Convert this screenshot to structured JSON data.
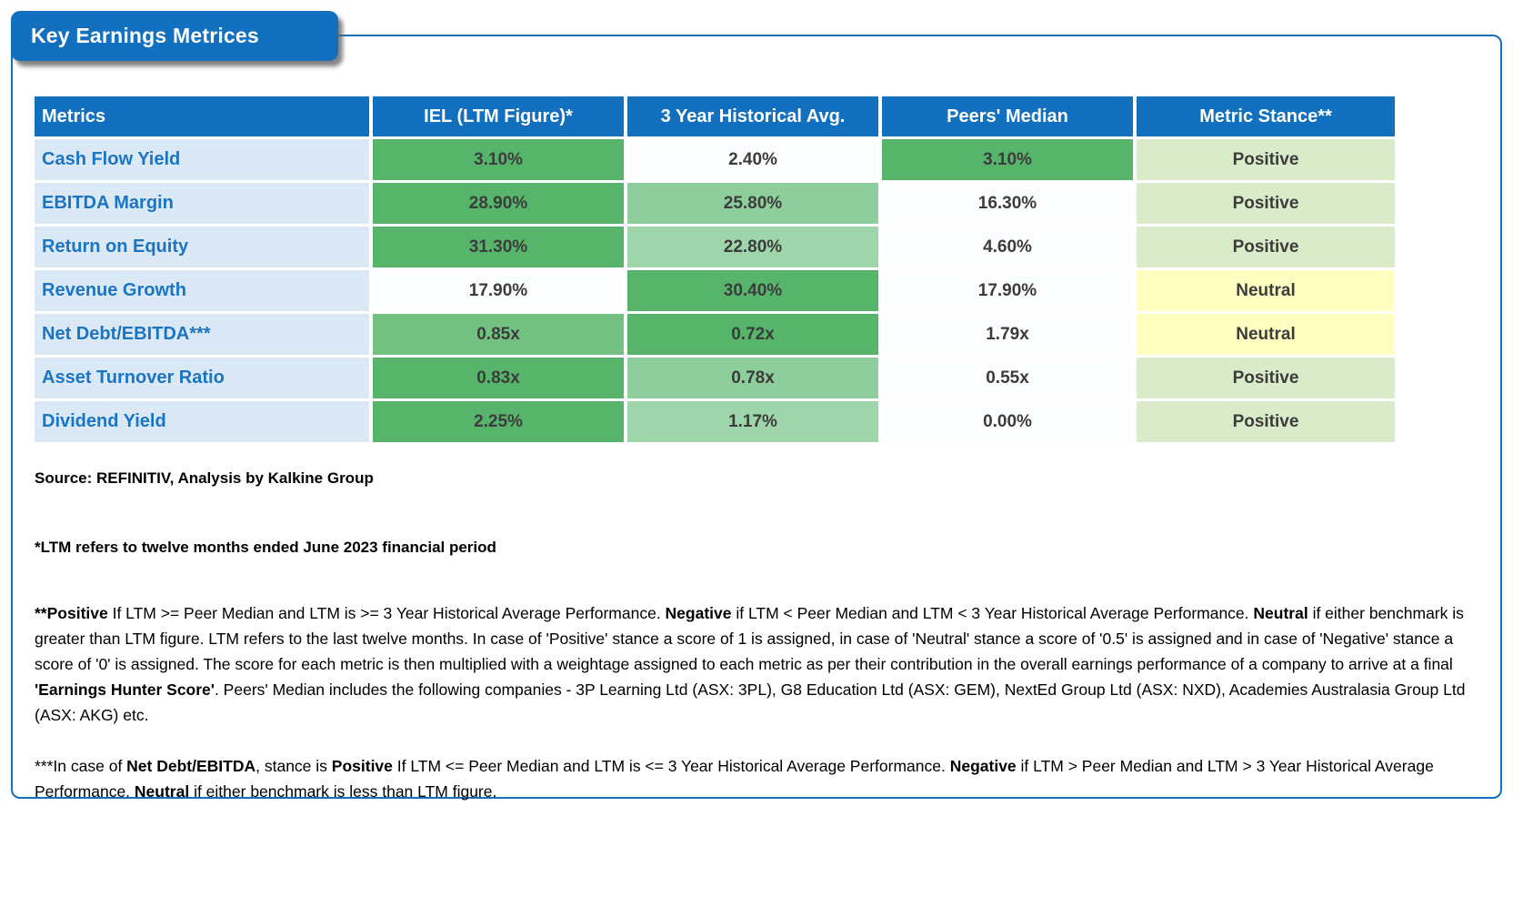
{
  "title": "Key Earnings Metrices",
  "palette": {
    "brand_blue": "#1270bf",
    "label_bg": "#dbe8f5",
    "label_text": "#1b75c5",
    "green_strong": "#57b56b",
    "green_mid": "#72c181",
    "green_light": "#8ecd9c",
    "green_lighter": "#9ed5ab",
    "stance_positive_bg": "#d9ebc8",
    "stance_neutral_bg": "#ffffc2",
    "value_text": "#3c3c3c"
  },
  "table": {
    "headers": {
      "metric": "Metrics",
      "iel": "IEL (LTM Figure)*",
      "hist": "3 Year Historical Avg.",
      "peers": "Peers' Median",
      "stance": "Metric Stance**"
    },
    "rows": [
      {
        "metric": "Cash Flow Yield",
        "iel": {
          "value": "3.10%",
          "fill": "green-strong"
        },
        "hist": {
          "value": "2.40%",
          "fill": "plain"
        },
        "peers": {
          "value": "3.10%",
          "fill": "green-strong"
        },
        "stance": {
          "value": "Positive",
          "fill": "stance-positive"
        }
      },
      {
        "metric": "EBITDA Margin",
        "iel": {
          "value": "28.90%",
          "fill": "green-strong"
        },
        "hist": {
          "value": "25.80%",
          "fill": "green-light"
        },
        "peers": {
          "value": "16.30%",
          "fill": "plain"
        },
        "stance": {
          "value": "Positive",
          "fill": "stance-positive"
        }
      },
      {
        "metric": "Return on Equity",
        "iel": {
          "value": "31.30%",
          "fill": "green-strong"
        },
        "hist": {
          "value": "22.80%",
          "fill": "green-lighter"
        },
        "peers": {
          "value": "4.60%",
          "fill": "plain"
        },
        "stance": {
          "value": "Positive",
          "fill": "stance-positive"
        }
      },
      {
        "metric": "Revenue Growth",
        "iel": {
          "value": "17.90%",
          "fill": "plain"
        },
        "hist": {
          "value": "30.40%",
          "fill": "green-strong"
        },
        "peers": {
          "value": "17.90%",
          "fill": "plain"
        },
        "stance": {
          "value": "Neutral",
          "fill": "stance-neutral"
        }
      },
      {
        "metric": "Net Debt/EBITDA***",
        "iel": {
          "value": "0.85x",
          "fill": "green-mid"
        },
        "hist": {
          "value": "0.72x",
          "fill": "green-strong"
        },
        "peers": {
          "value": "1.79x",
          "fill": "plain"
        },
        "stance": {
          "value": "Neutral",
          "fill": "stance-neutral"
        }
      },
      {
        "metric": "Asset Turnover Ratio",
        "iel": {
          "value": "0.83x",
          "fill": "green-strong"
        },
        "hist": {
          "value": "0.78x",
          "fill": "green-light"
        },
        "peers": {
          "value": "0.55x",
          "fill": "plain"
        },
        "stance": {
          "value": "Positive",
          "fill": "stance-positive"
        }
      },
      {
        "metric": "Dividend Yield",
        "iel": {
          "value": "2.25%",
          "fill": "green-strong"
        },
        "hist": {
          "value": "1.17%",
          "fill": "green-lighter"
        },
        "peers": {
          "value": "0.00%",
          "fill": "plain"
        },
        "stance": {
          "value": "Positive",
          "fill": "stance-positive"
        }
      }
    ]
  },
  "footnotes": {
    "source": "Source: REFINITIV, Analysis by Kalkine Group",
    "ltm_note": "*LTM refers to twelve months ended June 2023 financial period",
    "stance_note_segments": [
      {
        "text": "**Positive",
        "bold": true
      },
      {
        "text": " If LTM >= Peer Median and LTM is >= 3 Year Historical Average Performance. ",
        "bold": false
      },
      {
        "text": "Negative",
        "bold": true
      },
      {
        "text": " if LTM < Peer Median and LTM < 3 Year Historical Average Performance. ",
        "bold": false
      },
      {
        "text": "Neutral",
        "bold": true
      },
      {
        "text": " if either benchmark is greater than LTM figure. LTM refers to the last twelve months. In case of 'Positive' stance a score of 1 is assigned, in case of 'Neutral' stance a score of '0.5' is assigned and in case of 'Negative' stance a score of '0' is assigned. The score for each metric is then multiplied with a weightage assigned to each metric as per their contribution in the overall earnings performance of a company to arrive at a final ",
        "bold": false
      },
      {
        "text": "'Earnings Hunter Score'",
        "bold": true
      },
      {
        "text": ". Peers' Median includes the following companies - 3P Learning Ltd (ASX: 3PL), G8 Education Ltd (ASX: GEM), NextEd Group Ltd (ASX: NXD), Academies Australasia Group Ltd (ASX: AKG)  etc.",
        "bold": false
      }
    ],
    "netdebt_note_segments": [
      {
        "text": "***In case of ",
        "bold": false
      },
      {
        "text": "Net Debt/EBITDA",
        "bold": true
      },
      {
        "text": ", stance is ",
        "bold": false
      },
      {
        "text": "Positive",
        "bold": true
      },
      {
        "text": " If LTM <= Peer Median and LTM is <= 3 Year Historical Average Performance. ",
        "bold": false
      },
      {
        "text": "Negative",
        "bold": true
      },
      {
        "text": " if LTM > Peer Median and LTM > 3 Year Historical Average Performance. ",
        "bold": false
      },
      {
        "text": "Neutral",
        "bold": true
      },
      {
        "text": " if either benchmark is less than LTM figure.",
        "bold": false
      }
    ]
  }
}
